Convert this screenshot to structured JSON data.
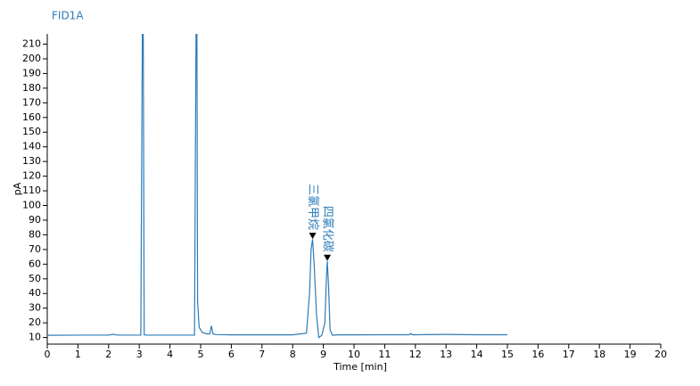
{
  "chart_data": {
    "type": "line",
    "title": "FID1A",
    "xlabel": "Time [min]",
    "ylabel": "pA",
    "x": [
      0,
      1,
      2,
      2.15,
      2.3,
      3.05,
      3.1,
      3.13,
      3.16,
      3.25,
      4.8,
      4.85,
      4.88,
      4.9,
      4.95,
      5.05,
      5.2,
      5.3,
      5.35,
      5.4,
      5.5,
      6,
      7,
      8,
      8.45,
      8.55,
      8.6,
      8.65,
      8.7,
      8.78,
      8.85,
      8.95,
      9.05,
      9.1,
      9.13,
      9.17,
      9.22,
      9.3,
      9.45,
      10,
      11,
      11.8,
      11.85,
      11.9,
      12,
      13,
      14,
      15
    ],
    "values": [
      11.5,
      11.6,
      11.6,
      12.2,
      11.6,
      11.6,
      217,
      217,
      11.8,
      11.6,
      11.6,
      217,
      217,
      35,
      17,
      13.5,
      12.5,
      12.5,
      18,
      12.5,
      12,
      11.8,
      11.8,
      11.8,
      13,
      40,
      70,
      77,
      60,
      25,
      10,
      11.5,
      20,
      50,
      62,
      45,
      15,
      11.5,
      11.8,
      11.8,
      11.9,
      11.9,
      12.8,
      11.9,
      11.9,
      12.1,
      11.9,
      11.9
    ],
    "color": "#2b7bb9",
    "xlim": [
      0,
      20
    ],
    "ylim": [
      5.5,
      217
    ],
    "xticks": [
      0,
      1,
      2,
      3,
      4,
      5,
      6,
      7,
      8,
      9,
      10,
      11,
      12,
      13,
      14,
      15,
      16,
      17,
      18,
      19,
      20
    ],
    "yticks": [
      10,
      20,
      30,
      40,
      50,
      60,
      70,
      80,
      90,
      100,
      110,
      120,
      130,
      140,
      150,
      160,
      170,
      180,
      190,
      200,
      210
    ],
    "annotations": [
      {
        "text": "三氯甲烷",
        "x": 8.65,
        "y": 79
      },
      {
        "text": "四氯化碳",
        "x": 9.13,
        "y": 64
      }
    ]
  }
}
